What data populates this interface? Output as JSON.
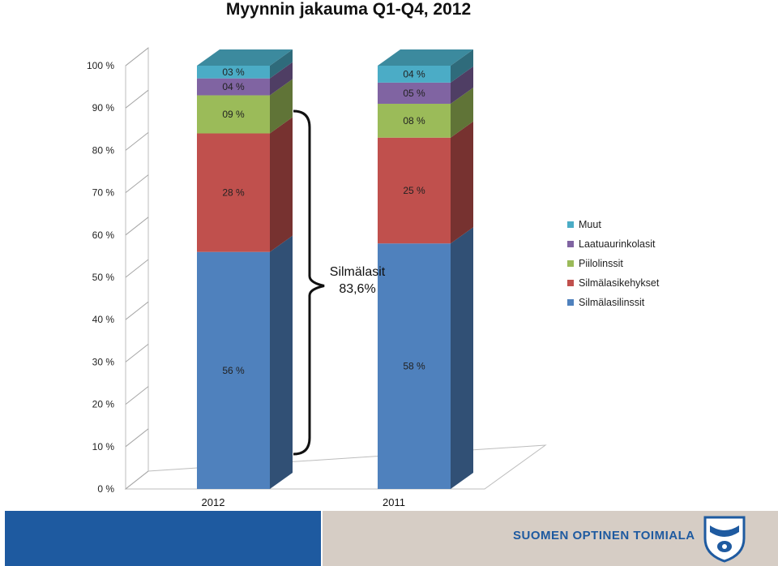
{
  "title": "Myynnin jakauma Q1-Q4, 2012",
  "chart_data": {
    "type": "bar",
    "stacked": true,
    "categories": [
      "2012",
      "2011"
    ],
    "y_ticks": [
      "0 %",
      "10 %",
      "20 %",
      "30 %",
      "40 %",
      "50 %",
      "60 %",
      "70 %",
      "80 %",
      "90 %",
      "100 %"
    ],
    "ylim": [
      0,
      100
    ],
    "series": [
      {
        "name": "Silmälasilinssit",
        "color": "#4f81bd",
        "values": [
          56,
          58
        ],
        "labels": [
          "56 %",
          "58 %"
        ]
      },
      {
        "name": "Silmälasikehykset",
        "color": "#c0504d",
        "values": [
          28,
          25
        ],
        "labels": [
          "28 %",
          "25 %"
        ]
      },
      {
        "name": "Piilolinssit",
        "color": "#9bbb59",
        "values": [
          9,
          8
        ],
        "labels": [
          "09 %",
          "08 %"
        ]
      },
      {
        "name": "Laatuaurinkolasit",
        "color": "#8064a2",
        "values": [
          4,
          5
        ],
        "labels": [
          "04 %",
          "05 %"
        ]
      },
      {
        "name": "Muut",
        "color": "#4bacc6",
        "values": [
          3,
          4
        ],
        "labels": [
          "03 %",
          "04 %"
        ]
      }
    ],
    "legend_position": "right",
    "annotation": {
      "line1": "Silmälasit",
      "line2": "83,6%"
    }
  },
  "footer": {
    "brand_text": "SUOMEN OPTINEN TOIMIALA",
    "colors": {
      "blue": "#1e5aa0",
      "grey": "#d6cdc5"
    }
  }
}
